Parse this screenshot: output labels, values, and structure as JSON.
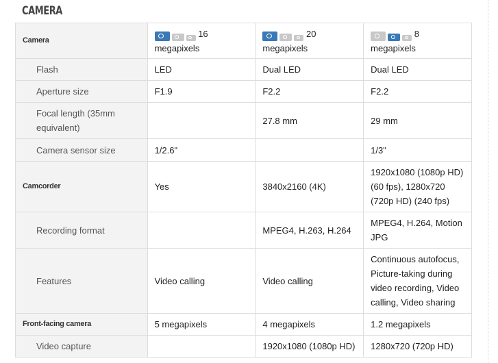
{
  "section_title": "CAMERA",
  "colors": {
    "icon_active": "#3a78b8",
    "icon_inactive": "#c8c8c8"
  },
  "rows": [
    {
      "label": "Camera",
      "main": true,
      "values": [
        "16 megapixels",
        "20 megapixels",
        "8 megapixels"
      ],
      "camera_icons": [
        [
          "large-active",
          "medium",
          "small"
        ],
        [
          "large-active",
          "medium",
          "small"
        ],
        [
          "large",
          "medium-active",
          "small"
        ]
      ]
    },
    {
      "label": "Flash",
      "values": [
        "LED",
        "Dual LED",
        "Dual LED"
      ]
    },
    {
      "label": "Aperture size",
      "values": [
        "F1.9",
        "F2.2",
        "F2.2"
      ]
    },
    {
      "label": "Focal length (35mm equivalent)",
      "values": [
        "",
        "27.8 mm",
        "29 mm"
      ]
    },
    {
      "label": "Camera sensor size",
      "values": [
        "1/2.6\"",
        "",
        "1/3\""
      ]
    },
    {
      "label": "Camcorder",
      "main": true,
      "values": [
        "Yes",
        "3840x2160 (4K)",
        "1920x1080 (1080p HD) (60 fps), 1280x720 (720p HD) (240 fps)"
      ]
    },
    {
      "label": "Recording format",
      "values": [
        "",
        "MPEG4, H.263, H.264",
        "MPEG4, H.264, Motion JPG"
      ]
    },
    {
      "label": "Features",
      "values": [
        "Video calling",
        "Video calling",
        "Continuous autofocus, Picture-taking during video recording, Video calling, Video sharing"
      ]
    },
    {
      "label": "Front-facing camera",
      "main": true,
      "values": [
        "5 megapixels",
        "4 megapixels",
        "1.2 megapixels"
      ]
    },
    {
      "label": "Video capture",
      "values": [
        "",
        "1920x1080 (1080p HD)",
        "1280x720 (720p HD)"
      ]
    }
  ]
}
